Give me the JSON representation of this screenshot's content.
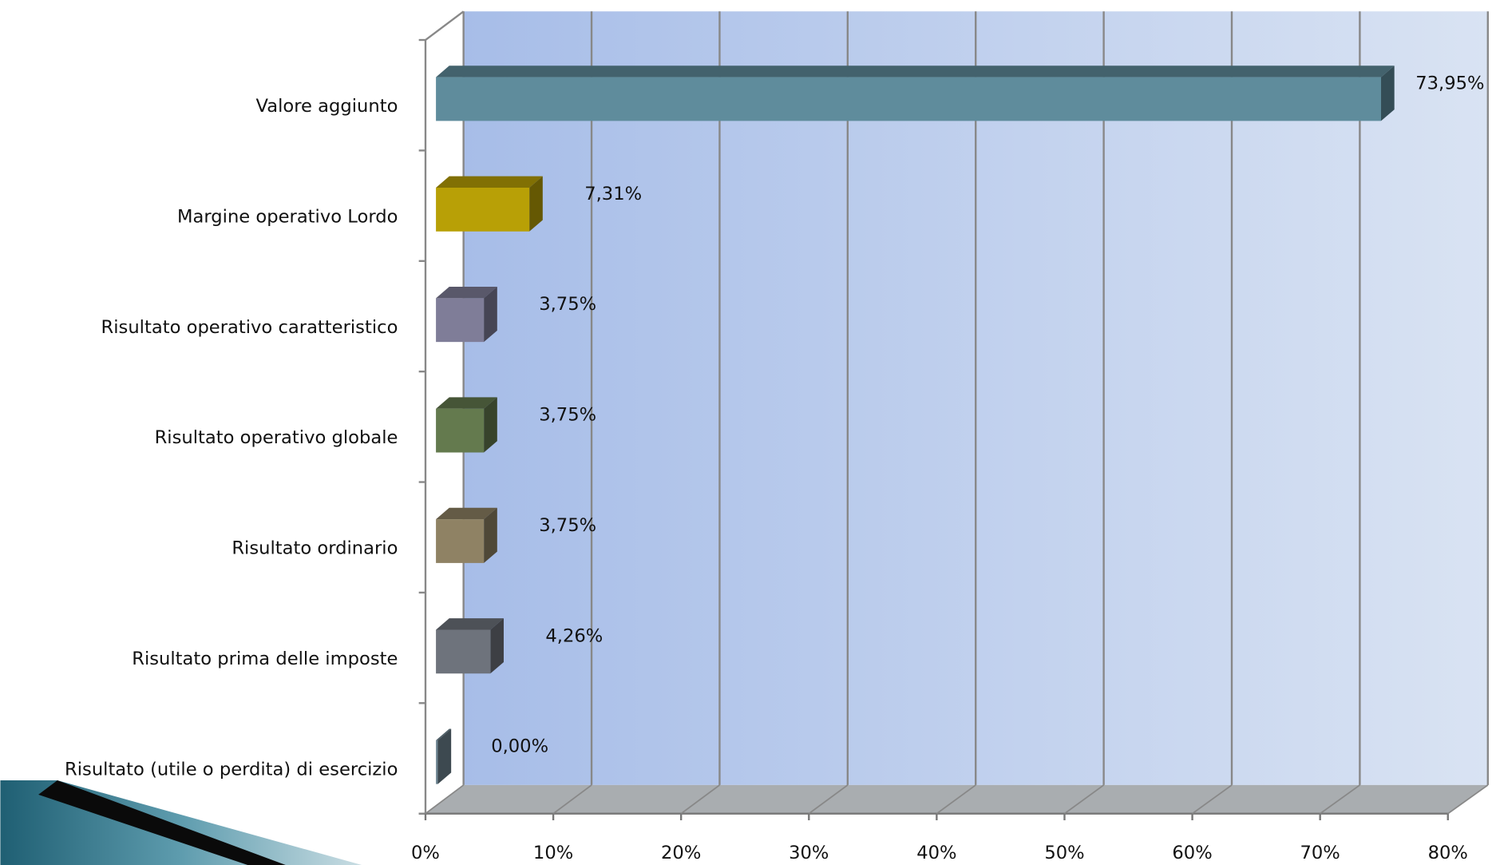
{
  "chart_data": {
    "type": "bar",
    "orientation": "horizontal",
    "categories": [
      "Valore aggiunto",
      "Margine operativo Lordo",
      "Risultato operativo caratteristico",
      "Risultato operativo globale",
      "Risultato ordinario",
      "Risultato prima delle imposte",
      "Risultato (utile o perdita) di esercizio"
    ],
    "values": [
      73.95,
      7.31,
      3.75,
      3.75,
      3.75,
      4.26,
      0.0
    ],
    "value_labels": [
      "73,95%",
      "7,31%",
      "3,75%",
      "3,75%",
      "3,75%",
      "4,26%",
      "0,00%"
    ],
    "colors": [
      "#5f8c9c",
      "#b8a006",
      "#7f7d98",
      "#647a4e",
      "#8f8264",
      "#6e737c",
      "#6e8591"
    ],
    "xlim": [
      0,
      80
    ],
    "xticks": [
      {
        "value": 0,
        "label": "0%"
      },
      {
        "value": 10,
        "label": "10%"
      },
      {
        "value": 20,
        "label": "20%"
      },
      {
        "value": 30,
        "label": "30%"
      },
      {
        "value": 40,
        "label": "40%"
      },
      {
        "value": 50,
        "label": "50%"
      },
      {
        "value": 60,
        "label": "60%"
      },
      {
        "value": 70,
        "label": "70%"
      },
      {
        "value": 80,
        "label": "80%"
      }
    ],
    "grid": true
  }
}
